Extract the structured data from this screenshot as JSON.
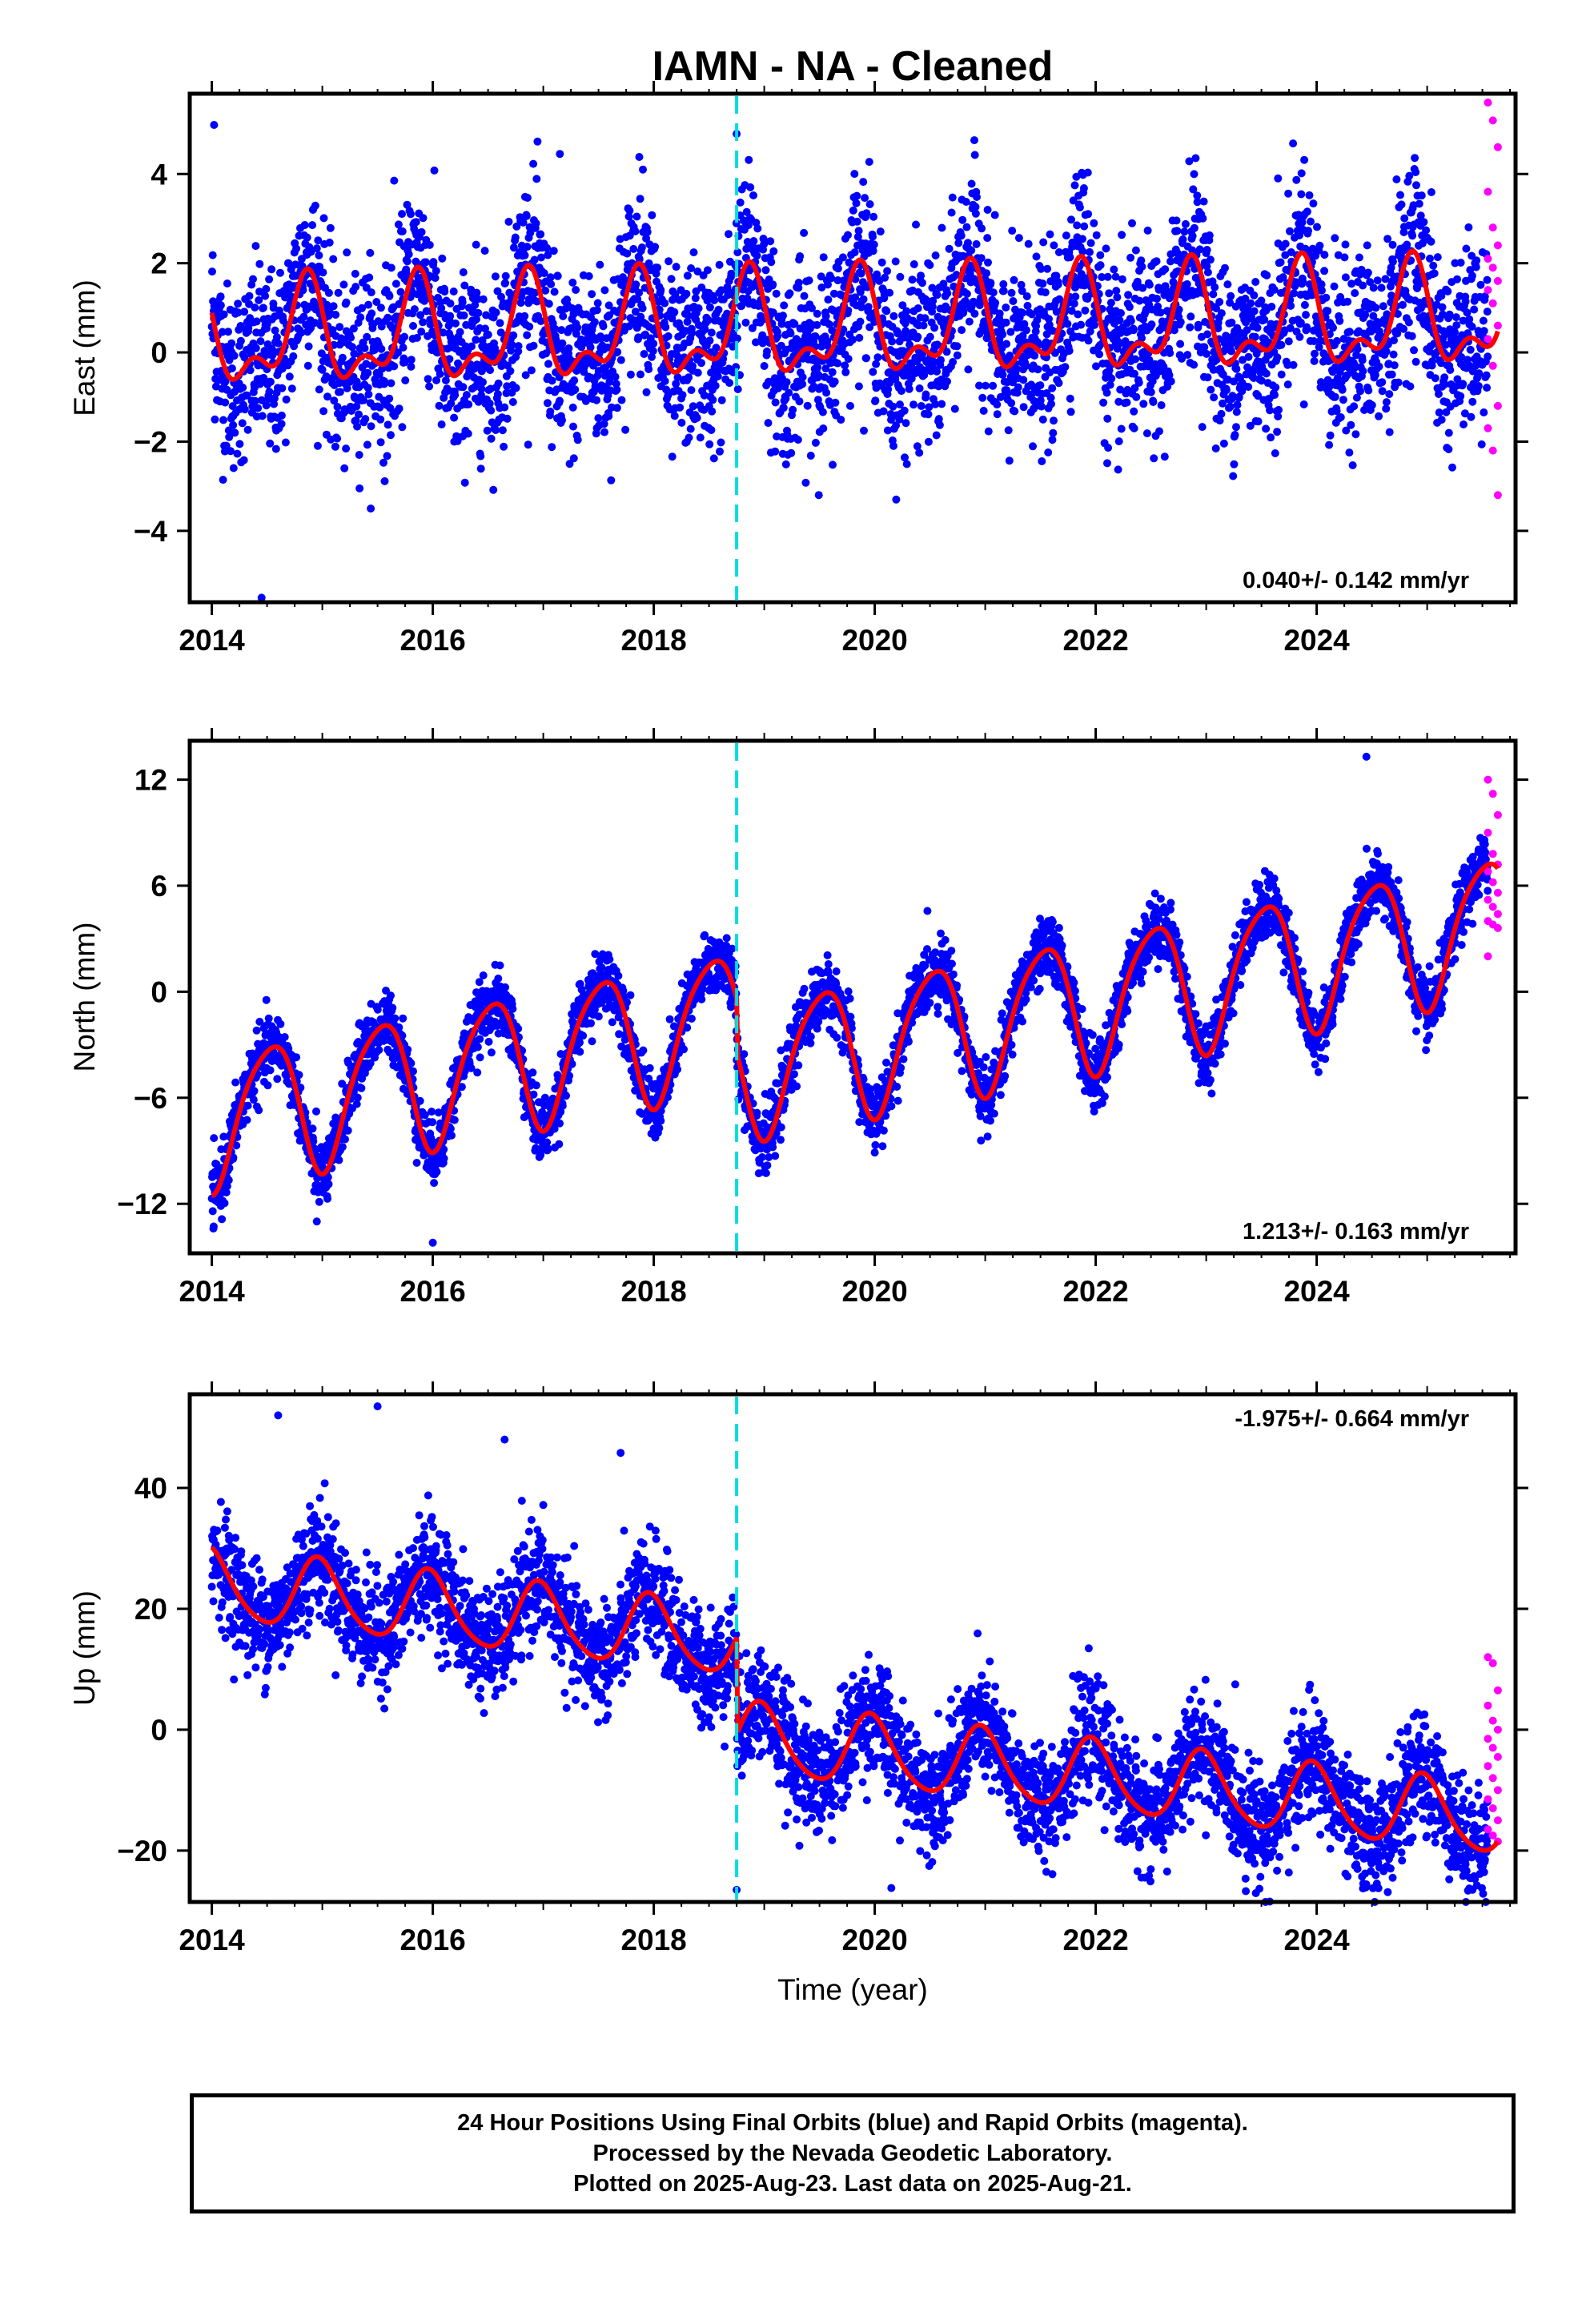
{
  "figure": {
    "title": "IAMN  - NA - Cleaned",
    "xlabel": "Time (year)"
  },
  "colors": {
    "final_orbits": "#0000ff",
    "rapid_orbits": "#ff00ff",
    "model_fit": "#ff0000",
    "event_line": "#00dddd",
    "frame": "#000000"
  },
  "chart_data": [
    {
      "type": "scatter",
      "name": "east",
      "ylabel": "East (mm)",
      "rate_label": "0.040+/- 0.142 mm/yr",
      "rate_position": "bottom-right",
      "xlim": [
        2013.8,
        2025.8
      ],
      "ylim": [
        -5.6,
        5.8
      ],
      "xticks": [
        2014,
        2016,
        2018,
        2020,
        2022,
        2024
      ],
      "xtick_labels": [
        "2014",
        "2016",
        "2018",
        "2020",
        "2022",
        "2024"
      ],
      "yticks": [
        -4,
        -2,
        0,
        2,
        4
      ],
      "ytick_labels": [
        "−4",
        "−2",
        "0",
        "2",
        "4"
      ],
      "event_line_x": 2018.75,
      "model": {
        "offset": 0.3,
        "rate": 0.04,
        "annual_amp": 1.0,
        "annual_phase": 0.6,
        "semiannual_amp": 0.55,
        "semiannual_phase": 0.25,
        "step": 0
      },
      "noise_sd": 1.0,
      "final_range": [
        2014.0,
        2025.55
      ],
      "rapid_range": [
        2025.55,
        2025.64
      ],
      "rapid_values": [
        5.6,
        5.2,
        4.6,
        3.6,
        2.8,
        2.4,
        2.1,
        1.9,
        1.6,
        1.4,
        1.1,
        0.6,
        0.3,
        -0.3,
        -1.2,
        -1.7,
        -2.2,
        -3.2
      ],
      "outliers": [
        [
          2014.02,
          5.1
        ],
        [
          2014.45,
          -5.5
        ],
        [
          2018.75,
          4.9
        ],
        [
          2017.15,
          4.45
        ],
        [
          2015.65,
          3.85
        ],
        [
          2023.65,
          3.9
        ]
      ]
    },
    {
      "type": "scatter",
      "name": "north",
      "ylabel": "North (mm)",
      "rate_label": "1.213+/- 0.163 mm/yr",
      "rate_position": "bottom-right",
      "xlim": [
        2013.8,
        2025.8
      ],
      "ylim": [
        -14.8,
        14.2
      ],
      "xticks": [
        2014,
        2016,
        2018,
        2020,
        2022,
        2024
      ],
      "xtick_labels": [
        "2014",
        "2016",
        "2018",
        "2020",
        "2022",
        "2024"
      ],
      "yticks": [
        -12,
        -6,
        0,
        6,
        12
      ],
      "ytick_labels": [
        "−12",
        "−6",
        "0",
        "6",
        "12"
      ],
      "event_line_x": 2018.75,
      "model": {
        "offset": -7.2,
        "rate": 1.213,
        "annual_amp": 3.8,
        "annual_phase": 0.27,
        "semiannual_amp": 0.6,
        "semiannual_phase": 0.1,
        "step": -3.0
      },
      "noise_sd": 0.9,
      "final_range": [
        2014.0,
        2025.55
      ],
      "rapid_range": [
        2025.55,
        2025.64
      ],
      "rapid_values": [
        12.0,
        11.2,
        10.0,
        9.0,
        7.8,
        7.2,
        6.8,
        6.2,
        5.6,
        5.2,
        4.8,
        4.4,
        4.0,
        3.8,
        3.6,
        2.0
      ],
      "outliers": [
        [
          2016.0,
          -14.2
        ],
        [
          2024.45,
          13.3
        ],
        [
          2014.95,
          -13.0
        ]
      ]
    },
    {
      "type": "scatter",
      "name": "up",
      "ylabel": "Up (mm)",
      "rate_label": "-1.975+/- 0.664 mm/yr",
      "rate_position": "top-right",
      "xlim": [
        2013.8,
        2025.8
      ],
      "ylim": [
        -28.5,
        55.5
      ],
      "xticks": [
        2014,
        2016,
        2018,
        2020,
        2022,
        2024
      ],
      "xtick_labels": [
        "2014",
        "2016",
        "2018",
        "2020",
        "2022",
        "2024"
      ],
      "yticks": [
        -20,
        0,
        20,
        40
      ],
      "ytick_labels": [
        "−20",
        "0",
        "20",
        "40"
      ],
      "event_line_x": 2018.75,
      "model": {
        "offset": 24.0,
        "rate": -1.975,
        "annual_amp": 5.8,
        "annual_phase": 0.72,
        "semiannual_amp": 0.8,
        "semiannual_phase": 0.3,
        "step": -16.0
      },
      "noise_sd": 4.6,
      "final_range": [
        2014.0,
        2025.55
      ],
      "rapid_range": [
        2025.55,
        2025.64
      ],
      "rapid_values": [
        12.0,
        11.0,
        6.5,
        4.0,
        1.5,
        0.0,
        -1.5,
        -3.0,
        -4.5,
        -6.0,
        -8.0,
        -10.0,
        -11.5,
        -13.0,
        -15.0,
        -16.5,
        -17.5,
        -18.5
      ],
      "outliers": [
        [
          2014.6,
          52.0
        ],
        [
          2015.5,
          53.5
        ],
        [
          2016.65,
          48.0
        ],
        [
          2017.7,
          45.8
        ],
        [
          2018.75,
          -26.5
        ],
        [
          2020.15,
          -26.2
        ]
      ]
    }
  ],
  "footer": {
    "line1": "24 Hour Positions Using Final Orbits (blue) and Rapid Orbits (magenta).",
    "line2": "Processed by the Nevada Geodetic Laboratory.",
    "line3": "Plotted on 2025-Aug-23. Last data on 2025-Aug-21."
  }
}
